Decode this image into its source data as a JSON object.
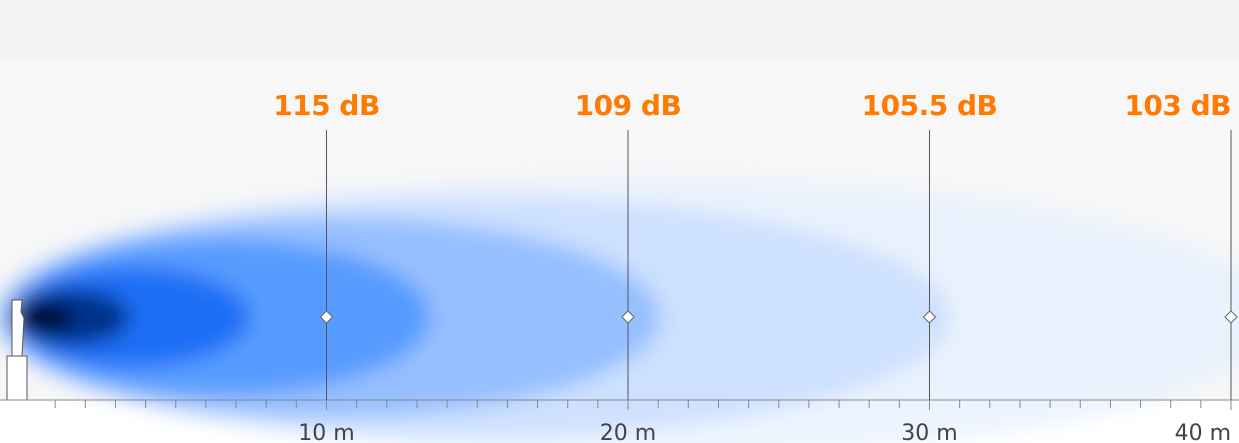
{
  "colors": {
    "background": "#f7f7f7",
    "accent": "#ff7a00",
    "beam_core": "#000d33",
    "beam_main": "#1a74ff",
    "line": "#555555",
    "axis_text": "#444444"
  },
  "axis": {
    "unit": "m",
    "max": 40,
    "minor_step": 1
  },
  "markers": [
    {
      "distance": 10,
      "distance_label": "10 m",
      "level_label": "115 dB"
    },
    {
      "distance": 20,
      "distance_label": "20 m",
      "level_label": "109 dB"
    },
    {
      "distance": 30,
      "distance_label": "30 m",
      "level_label": "105.5 dB"
    },
    {
      "distance": 40,
      "distance_label": "40 m",
      "level_label": "103 dB"
    }
  ],
  "source_icon": "speaker-icon"
}
